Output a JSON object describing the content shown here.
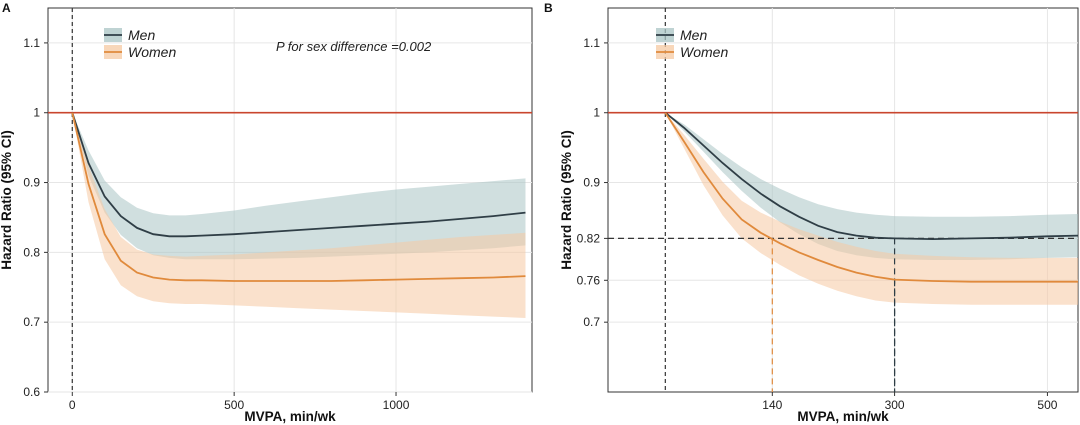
{
  "chart_data": [
    {
      "panel_label": "A",
      "type": "line",
      "xlabel": "MVPA, min/wk",
      "ylabel": "Hazard Ratio (95% CI)",
      "xlim": [
        -75,
        1420
      ],
      "ylim": [
        0.6,
        1.15
      ],
      "x_ticks": [
        0,
        500,
        1000
      ],
      "x_tick_labels": [
        "0",
        "500",
        "1000"
      ],
      "y_ticks": [
        0.6,
        0.7,
        0.8,
        0.9,
        1.0,
        1.1
      ],
      "y_tick_labels": [
        "0.6",
        "0.7",
        "0.8",
        "0.9",
        "1",
        "1.1"
      ],
      "grid": true,
      "reference_line": {
        "y": 1.0,
        "color": "#c9452e"
      },
      "vertical_dashed_x": 0,
      "annotation": "P for sex difference =0.002",
      "legend": {
        "placement": "top-left",
        "entries": [
          "Men",
          "Women"
        ]
      },
      "series": [
        {
          "name": "Men",
          "color": "#2f3e46",
          "band_color": "#a9c4c4",
          "x": [
            0,
            50,
            100,
            150,
            200,
            250,
            300,
            350,
            400,
            500,
            600,
            700,
            800,
            900,
            1000,
            1100,
            1200,
            1300,
            1400
          ],
          "y": [
            1.0,
            0.928,
            0.88,
            0.852,
            0.835,
            0.826,
            0.823,
            0.823,
            0.824,
            0.826,
            0.829,
            0.832,
            0.835,
            0.838,
            0.841,
            0.844,
            0.848,
            0.852,
            0.857
          ],
          "lower": [
            1.0,
            0.91,
            0.857,
            0.825,
            0.806,
            0.796,
            0.792,
            0.79,
            0.79,
            0.79,
            0.791,
            0.792,
            0.794,
            0.796,
            0.798,
            0.8,
            0.803,
            0.806,
            0.81
          ],
          "upper": [
            1.0,
            0.946,
            0.903,
            0.879,
            0.864,
            0.856,
            0.853,
            0.853,
            0.855,
            0.86,
            0.867,
            0.873,
            0.879,
            0.885,
            0.89,
            0.894,
            0.898,
            0.902,
            0.906
          ]
        },
        {
          "name": "Women",
          "color": "#e08a3c",
          "band_color": "#f5c9a3",
          "x": [
            0,
            50,
            100,
            150,
            200,
            250,
            300,
            350,
            400,
            500,
            600,
            700,
            800,
            900,
            1000,
            1100,
            1200,
            1300,
            1400
          ],
          "y": [
            1.0,
            0.898,
            0.826,
            0.788,
            0.771,
            0.764,
            0.761,
            0.76,
            0.76,
            0.759,
            0.759,
            0.759,
            0.759,
            0.76,
            0.761,
            0.762,
            0.763,
            0.764,
            0.766
          ],
          "lower": [
            1.0,
            0.872,
            0.79,
            0.753,
            0.737,
            0.73,
            0.727,
            0.726,
            0.726,
            0.724,
            0.722,
            0.72,
            0.718,
            0.716,
            0.714,
            0.712,
            0.71,
            0.708,
            0.706
          ],
          "upper": [
            1.0,
            0.924,
            0.862,
            0.822,
            0.804,
            0.797,
            0.795,
            0.794,
            0.795,
            0.797,
            0.8,
            0.803,
            0.806,
            0.81,
            0.814,
            0.818,
            0.822,
            0.825,
            0.828
          ]
        }
      ]
    },
    {
      "panel_label": "B",
      "type": "line",
      "xlabel": "MVPA, min/wk",
      "ylabel": "Hazard Ratio (95% CI)",
      "xlim": [
        -75,
        540
      ],
      "ylim": [
        0.6,
        1.15
      ],
      "x_ticks": [
        140,
        300,
        500
      ],
      "x_tick_labels": [
        "140",
        "300",
        "500"
      ],
      "highlight_tick": {
        "value": 140,
        "color": "#e08a3c"
      },
      "y_ticks": [
        0.7,
        0.76,
        0.82,
        0.9,
        1.0,
        1.1
      ],
      "y_tick_labels": [
        "0.7",
        "0.76",
        "0.82",
        "0.9",
        "1",
        "1.1"
      ],
      "grid": true,
      "reference_line": {
        "y": 1.0,
        "color": "#c9452e"
      },
      "vertical_dashed_x": 0,
      "guide_lines": [
        {
          "x": 140,
          "y": 0.82,
          "color": "#e08a3c"
        },
        {
          "x": 300,
          "y": 0.82,
          "color": "#2f3e46"
        },
        {
          "x": 300,
          "y": 0.76,
          "color": "#2f3e46"
        }
      ],
      "horizontal_dashed_y": 0.82,
      "legend": {
        "placement": "top-left",
        "entries": [
          "Men",
          "Women"
        ]
      },
      "series": [
        {
          "name": "Men",
          "color": "#2f3e46",
          "band_color": "#a9c4c4",
          "x": [
            0,
            25,
            50,
            75,
            100,
            125,
            150,
            175,
            200,
            225,
            250,
            275,
            300,
            350,
            400,
            450,
            500,
            540
          ],
          "y": [
            1.0,
            0.978,
            0.953,
            0.928,
            0.905,
            0.884,
            0.866,
            0.851,
            0.838,
            0.829,
            0.824,
            0.821,
            0.82,
            0.819,
            0.82,
            0.821,
            0.823,
            0.824
          ],
          "lower": [
            1.0,
            0.973,
            0.944,
            0.915,
            0.888,
            0.864,
            0.843,
            0.826,
            0.812,
            0.802,
            0.796,
            0.792,
            0.79,
            0.789,
            0.789,
            0.79,
            0.792,
            0.793
          ],
          "upper": [
            1.0,
            0.983,
            0.962,
            0.941,
            0.922,
            0.905,
            0.891,
            0.879,
            0.869,
            0.862,
            0.857,
            0.854,
            0.852,
            0.851,
            0.851,
            0.852,
            0.854,
            0.855
          ]
        },
        {
          "name": "Women",
          "color": "#e08a3c",
          "band_color": "#f5c9a3",
          "x": [
            0,
            25,
            50,
            75,
            100,
            125,
            150,
            175,
            200,
            225,
            250,
            275,
            300,
            350,
            400,
            450,
            500,
            540
          ],
          "y": [
            1.0,
            0.958,
            0.915,
            0.877,
            0.847,
            0.828,
            0.813,
            0.8,
            0.789,
            0.779,
            0.771,
            0.765,
            0.761,
            0.759,
            0.758,
            0.758,
            0.758,
            0.758
          ],
          "lower": [
            1.0,
            0.948,
            0.896,
            0.853,
            0.82,
            0.799,
            0.782,
            0.767,
            0.755,
            0.745,
            0.737,
            0.731,
            0.728,
            0.726,
            0.725,
            0.725,
            0.725,
            0.725
          ],
          "upper": [
            1.0,
            0.968,
            0.934,
            0.901,
            0.874,
            0.857,
            0.844,
            0.833,
            0.824,
            0.815,
            0.808,
            0.802,
            0.798,
            0.795,
            0.793,
            0.792,
            0.792,
            0.792
          ]
        }
      ]
    }
  ]
}
